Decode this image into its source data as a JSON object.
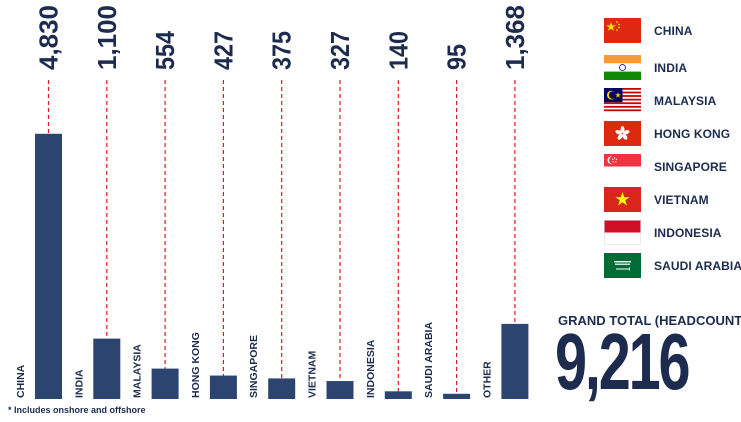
{
  "chart_data": {
    "type": "bar",
    "categories": [
      "CHINA",
      "INDIA",
      "MALAYSIA",
      "HONG KONG",
      "SINGAPORE",
      "VIETNAM",
      "INDONESIA",
      "SAUDI ARABIA",
      "OTHER"
    ],
    "values": [
      4830,
      1100,
      554,
      427,
      375,
      327,
      140,
      95,
      1368
    ],
    "value_labels": [
      "4,830",
      "1,100",
      "554",
      "427",
      "375",
      "327",
      "140",
      "95",
      "1,368"
    ],
    "ylim": [
      0,
      5500
    ],
    "bar_color": "#2b4570",
    "guide_color": "#e11b22"
  },
  "legend": [
    {
      "label": "CHINA",
      "icon": "china-flag-icon"
    },
    {
      "label": "INDIA",
      "icon": "india-flag-icon"
    },
    {
      "label": "MALAYSIA",
      "icon": "malaysia-flag-icon"
    },
    {
      "label": "HONG KONG",
      "icon": "hong-kong-flag-icon"
    },
    {
      "label": "SINGAPORE",
      "icon": "singapore-flag-icon"
    },
    {
      "label": "VIETNAM",
      "icon": "vietnam-flag-icon"
    },
    {
      "label": "INDONESIA",
      "icon": "indonesia-flag-icon"
    },
    {
      "label": "SAUDI ARABIA",
      "icon": "saudi-arabia-flag-icon"
    }
  ],
  "grand_total": {
    "label": "GRAND TOTAL (HEADCOUNT)",
    "value": "9,216"
  },
  "footnote": "* Includes onshore and offshore"
}
